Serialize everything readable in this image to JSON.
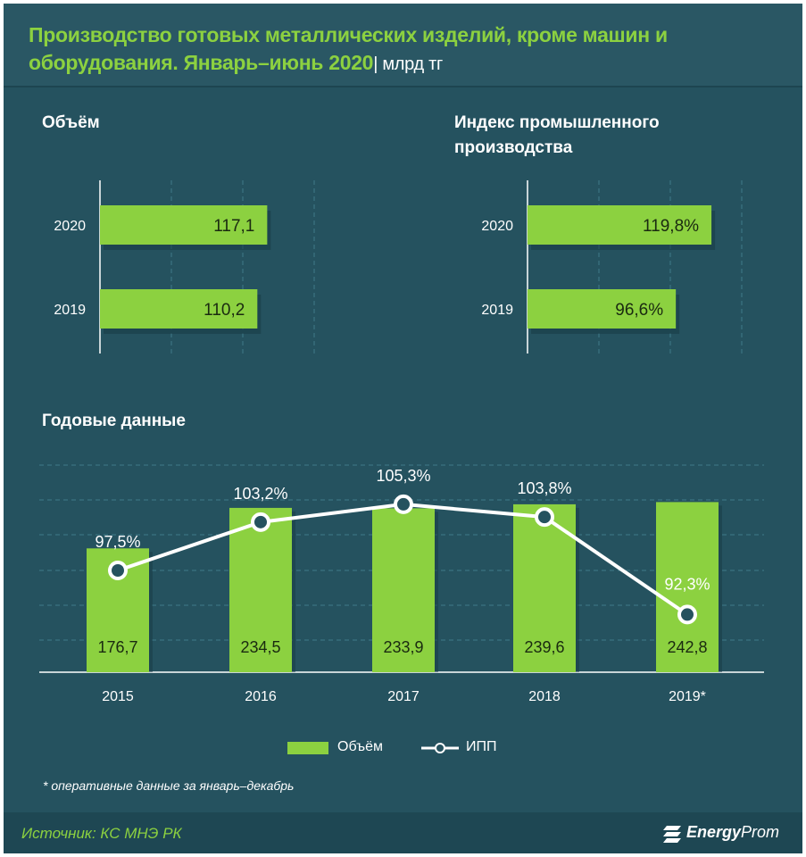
{
  "header": {
    "title": "Производство готовых металлических изделий, кроме машин и оборудования. Январь–июнь 2020",
    "unit": "| млрд тг"
  },
  "sections": {
    "volume_title": "Объём",
    "index_title_line1": "Индекс промышленного",
    "index_title_line2": "производства",
    "annual_title": "Годовые данные"
  },
  "chart_data": [
    {
      "type": "bar",
      "orientation": "horizontal",
      "title": "Объём",
      "categories": [
        "2020",
        "2019"
      ],
      "values": [
        117.1,
        110.2
      ],
      "value_labels": [
        "117,1",
        "110,2"
      ],
      "color": "#8cd140"
    },
    {
      "type": "bar",
      "orientation": "horizontal",
      "title": "Индекс промышленного производства",
      "categories": [
        "2020",
        "2019"
      ],
      "values": [
        119.8,
        96.6
      ],
      "value_labels": [
        "119,8%",
        "96,6%"
      ],
      "color": "#8cd140"
    },
    {
      "type": "bar",
      "title": "Годовые данные",
      "categories": [
        "2015",
        "2016",
        "2017",
        "2018",
        "2019*"
      ],
      "series": [
        {
          "name": "Объём",
          "type": "bar",
          "values": [
            176.7,
            234.5,
            233.9,
            239.6,
            242.8
          ],
          "value_labels": [
            "176,7",
            "234,5",
            "233,9",
            "239,6",
            "242,8"
          ],
          "color": "#8cd140"
        },
        {
          "name": "ИПП",
          "type": "line",
          "values": [
            97.5,
            103.2,
            105.3,
            103.8,
            92.3
          ],
          "value_labels": [
            "97,5%",
            "103,2%",
            "105,3%",
            "103,8%",
            "92,3%"
          ],
          "color": "#ffffff"
        }
      ],
      "legend": "bottom-center"
    }
  ],
  "footnote": "* оперативные данные за январь–декабрь",
  "footer": {
    "source": "Источник: КС МНЭ РК",
    "brand_bold": "Energy",
    "brand_light": "Prom"
  }
}
